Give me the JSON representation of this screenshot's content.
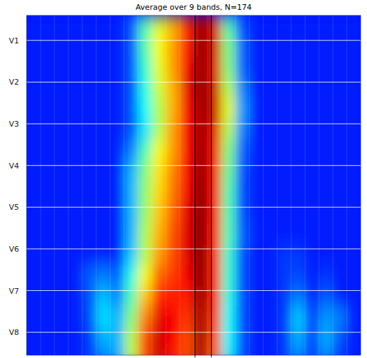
{
  "chart_data": {
    "type": "heatmap",
    "title": "Average over 9 bands, N=174",
    "x": [
      0.5,
      1.5,
      2.5,
      3.5,
      4.5,
      5.5,
      6.5,
      7.5,
      8.5,
      9.5,
      10.5,
      11.5,
      12.5,
      13.5,
      14.5,
      15.5,
      16.5,
      17.5,
      18.5,
      19.5,
      20.5,
      21.5,
      22.5,
      23.5
    ],
    "y": [
      0.65,
      1.15,
      1.65,
      2.15,
      2.65,
      3.15,
      3.65,
      4.15,
      4.65,
      5.15,
      5.65,
      6.15,
      6.65,
      7.15,
      7.65,
      8.15,
      8.65
    ],
    "xlim": [
      0,
      24
    ],
    "ylim": [
      0.4,
      8.55
    ],
    "xticks": [
      1,
      2,
      3,
      4,
      5,
      6,
      7,
      8,
      9,
      10,
      11,
      12,
      13,
      14,
      15,
      16,
      17,
      18,
      19,
      20,
      21,
      22,
      23
    ],
    "yticks": [
      {
        "value": 1,
        "label": "V1"
      },
      {
        "value": 2,
        "label": "V2"
      },
      {
        "value": 3,
        "label": "V3"
      },
      {
        "value": 4,
        "label": "V4"
      },
      {
        "value": 5,
        "label": "V5"
      },
      {
        "value": 6,
        "label": "V6"
      },
      {
        "value": 7,
        "label": "V7"
      },
      {
        "value": 8,
        "label": "V8"
      }
    ],
    "tick_labels": "y",
    "grid": true,
    "color_range": [
      0,
      1
    ],
    "reference_lines": [
      12.1,
      13.27
    ],
    "z": [
      [
        0.15,
        0.15,
        0.15,
        0.15,
        0.15,
        0.15,
        0.15,
        0.2,
        0.45,
        0.6,
        0.7,
        0.85,
        0.97,
        0.9,
        0.45,
        0.2,
        0.15,
        0.15,
        0.15,
        0.15,
        0.15,
        0.15,
        0.15,
        0.15
      ],
      [
        0.15,
        0.15,
        0.15,
        0.15,
        0.15,
        0.15,
        0.15,
        0.2,
        0.45,
        0.62,
        0.72,
        0.85,
        0.98,
        0.92,
        0.5,
        0.22,
        0.15,
        0.15,
        0.15,
        0.15,
        0.15,
        0.15,
        0.15,
        0.15
      ],
      [
        0.15,
        0.15,
        0.15,
        0.15,
        0.15,
        0.15,
        0.15,
        0.2,
        0.42,
        0.6,
        0.72,
        0.88,
        0.98,
        0.9,
        0.5,
        0.22,
        0.15,
        0.15,
        0.15,
        0.15,
        0.15,
        0.15,
        0.15,
        0.15
      ],
      [
        0.15,
        0.15,
        0.15,
        0.15,
        0.15,
        0.15,
        0.15,
        0.2,
        0.4,
        0.58,
        0.7,
        0.9,
        0.98,
        0.92,
        0.55,
        0.25,
        0.15,
        0.15,
        0.15,
        0.15,
        0.15,
        0.15,
        0.15,
        0.15
      ],
      [
        0.15,
        0.15,
        0.15,
        0.15,
        0.15,
        0.15,
        0.15,
        0.2,
        0.38,
        0.55,
        0.7,
        0.88,
        0.97,
        0.93,
        0.6,
        0.28,
        0.15,
        0.15,
        0.15,
        0.15,
        0.15,
        0.15,
        0.15,
        0.15
      ],
      [
        0.15,
        0.15,
        0.15,
        0.15,
        0.15,
        0.15,
        0.15,
        0.2,
        0.35,
        0.55,
        0.72,
        0.88,
        0.97,
        0.9,
        0.55,
        0.25,
        0.15,
        0.15,
        0.15,
        0.15,
        0.15,
        0.15,
        0.15,
        0.15
      ],
      [
        0.15,
        0.15,
        0.15,
        0.15,
        0.15,
        0.15,
        0.15,
        0.25,
        0.45,
        0.62,
        0.72,
        0.88,
        0.98,
        0.88,
        0.5,
        0.22,
        0.15,
        0.15,
        0.15,
        0.15,
        0.15,
        0.15,
        0.15,
        0.15
      ],
      [
        0.15,
        0.15,
        0.15,
        0.15,
        0.15,
        0.15,
        0.15,
        0.3,
        0.5,
        0.65,
        0.75,
        0.88,
        0.99,
        0.88,
        0.48,
        0.2,
        0.15,
        0.15,
        0.15,
        0.15,
        0.15,
        0.15,
        0.15,
        0.15
      ],
      [
        0.15,
        0.15,
        0.15,
        0.15,
        0.15,
        0.15,
        0.15,
        0.3,
        0.52,
        0.66,
        0.76,
        0.88,
        1,
        0.87,
        0.45,
        0.2,
        0.15,
        0.15,
        0.15,
        0.15,
        0.15,
        0.15,
        0.15,
        0.15
      ],
      [
        0.15,
        0.15,
        0.15,
        0.15,
        0.15,
        0.15,
        0.15,
        0.3,
        0.52,
        0.68,
        0.78,
        0.9,
        1,
        0.88,
        0.45,
        0.2,
        0.15,
        0.15,
        0.15,
        0.15,
        0.15,
        0.15,
        0.15,
        0.15
      ],
      [
        0.15,
        0.15,
        0.15,
        0.15,
        0.15,
        0.15,
        0.15,
        0.3,
        0.55,
        0.7,
        0.8,
        0.9,
        1,
        0.86,
        0.45,
        0.22,
        0.15,
        0.15,
        0.15,
        0.15,
        0.15,
        0.15,
        0.15,
        0.15
      ],
      [
        0.15,
        0.15,
        0.15,
        0.15,
        0.15,
        0.15,
        0.15,
        0.32,
        0.55,
        0.72,
        0.8,
        0.9,
        1,
        0.85,
        0.42,
        0.2,
        0.15,
        0.15,
        0.18,
        0.18,
        0.15,
        0.15,
        0.15,
        0.15
      ],
      [
        0.15,
        0.15,
        0.15,
        0.15,
        0.22,
        0.25,
        0.22,
        0.4,
        0.62,
        0.78,
        0.82,
        0.88,
        1,
        0.85,
        0.42,
        0.2,
        0.15,
        0.15,
        0.18,
        0.2,
        0.15,
        0.18,
        0.15,
        0.15
      ],
      [
        0.15,
        0.15,
        0.15,
        0.15,
        0.2,
        0.32,
        0.25,
        0.45,
        0.68,
        0.85,
        0.85,
        0.85,
        0.98,
        0.85,
        0.4,
        0.2,
        0.15,
        0.15,
        0.18,
        0.25,
        0.15,
        0.22,
        0.15,
        0.15
      ],
      [
        0.15,
        0.15,
        0.15,
        0.15,
        0.2,
        0.35,
        0.3,
        0.5,
        0.75,
        0.9,
        0.88,
        0.82,
        0.97,
        0.82,
        0.38,
        0.2,
        0.15,
        0.15,
        0.18,
        0.33,
        0.18,
        0.28,
        0.25,
        0.15
      ],
      [
        0.15,
        0.15,
        0.15,
        0.15,
        0.18,
        0.3,
        0.3,
        0.55,
        0.8,
        0.92,
        0.88,
        0.8,
        0.97,
        0.8,
        0.38,
        0.2,
        0.15,
        0.15,
        0.18,
        0.3,
        0.18,
        0.3,
        0.2,
        0.15
      ],
      [
        0.15,
        0.15,
        0.15,
        0.15,
        0.18,
        0.25,
        0.28,
        0.55,
        0.8,
        0.92,
        0.85,
        0.8,
        0.96,
        0.78,
        0.35,
        0.2,
        0.15,
        0.15,
        0.18,
        0.25,
        0.18,
        0.25,
        0.18,
        0.15
      ]
    ]
  }
}
